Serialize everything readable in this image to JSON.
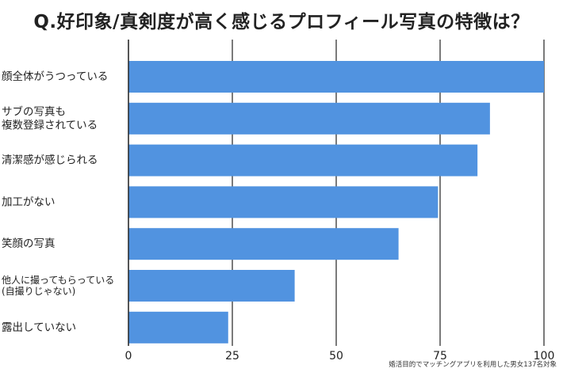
{
  "chart_data": {
    "type": "bar",
    "orientation": "horizontal",
    "title": "Q.好印象/真剣度が高く感じるプロフィール写真の特徴は？",
    "categories": [
      [
        "顔全体がうつっている"
      ],
      [
        "サブの写真も",
        "複数登録されている"
      ],
      [
        "清潔感が感じられる"
      ],
      [
        "加工がない"
      ],
      [
        "笑顔の写真"
      ],
      [
        "他人に撮ってもらっている",
        "(自撮りじゃない)"
      ],
      [
        "露出していない"
      ]
    ],
    "values": [
      100,
      87,
      84,
      74.5,
      65,
      40,
      24
    ],
    "xlim": [
      0,
      100
    ],
    "xticks": [
      0,
      25,
      50,
      75,
      100
    ],
    "xlabel": "",
    "ylabel": "",
    "grid": "vertical",
    "bar_color": "#5193e0",
    "gridline_color": "#222222"
  },
  "footnote": "婚活目的でマッチングアプリを利用した男女137名対象"
}
